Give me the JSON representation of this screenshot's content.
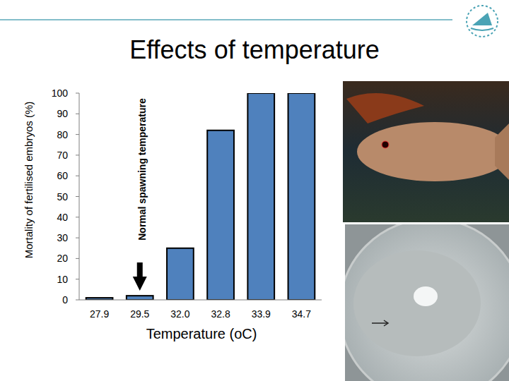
{
  "chart_data": {
    "type": "bar",
    "title": "Effects of temperature",
    "x_label": "Temperature (oC)",
    "y_label": "Mortality of fertilised embryos (%)",
    "categories": [
      "27.9",
      "29.5",
      "32.0",
      "32.8",
      "33.9",
      "34.7"
    ],
    "values": [
      1,
      2,
      25,
      82,
      100,
      100
    ],
    "color": "#4f81bd",
    "ylim": [
      0,
      100
    ],
    "yticks": [
      0,
      10,
      20,
      30,
      40,
      50,
      60,
      70,
      80,
      90,
      100
    ],
    "grid": false,
    "annotations": [
      {
        "text": "Normal spawning temperature",
        "x": "29.5"
      }
    ]
  }
}
